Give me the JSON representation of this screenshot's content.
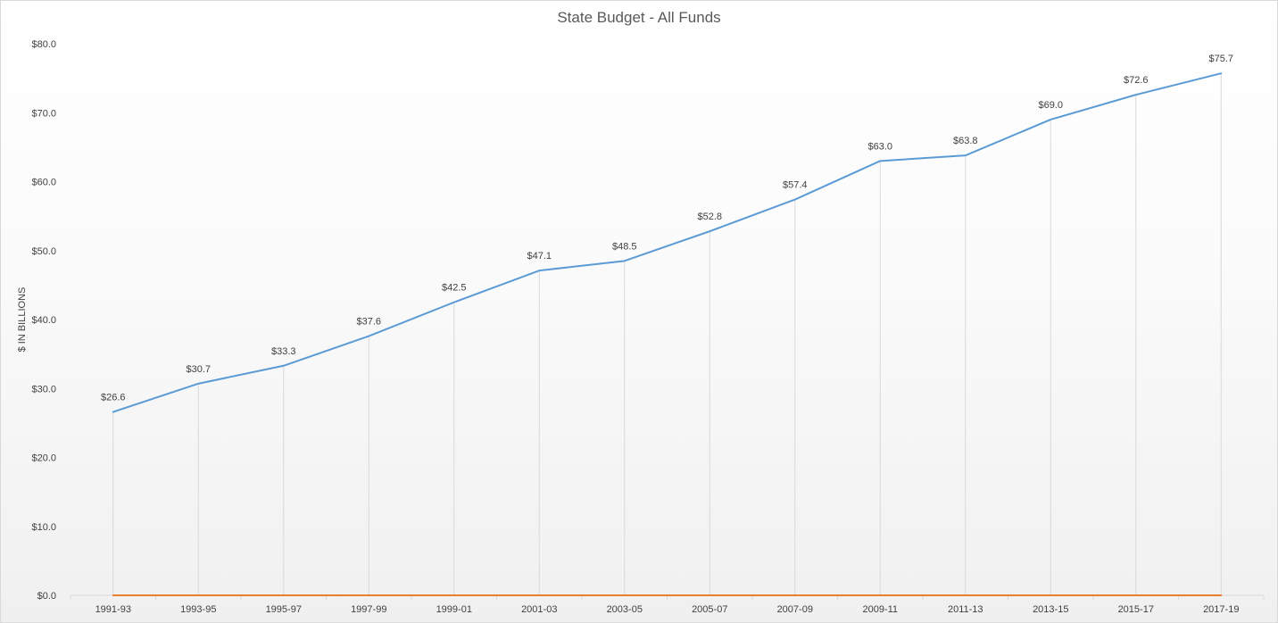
{
  "chart_data": {
    "type": "line",
    "title": "State Budget - All Funds",
    "ylabel": "$ IN BILLIONS",
    "xlabel": "",
    "categories": [
      "1991-93",
      "1993-95",
      "1995-97",
      "1997-99",
      "1999-01",
      "2001-03",
      "2003-05",
      "2005-07",
      "2007-09",
      "2009-11",
      "2011-13",
      "2013-15",
      "2015-17",
      "2017-19"
    ],
    "series": [
      {
        "values": [
          26.6,
          30.7,
          33.3,
          37.6,
          42.5,
          47.1,
          48.5,
          52.8,
          57.4,
          63.0,
          63.8,
          69.0,
          72.6,
          75.7
        ],
        "data_labels": [
          "$26.6",
          "$30.7",
          "$33.3",
          "$37.6",
          "$42.5",
          "$47.1",
          "$48.5",
          "$52.8",
          "$57.4",
          "$63.0",
          "$63.8",
          "$69.0",
          "$72.6",
          "$75.7"
        ],
        "color": "#5b9bd5"
      },
      {
        "values": [
          0,
          0,
          0,
          0,
          0,
          0,
          0,
          0,
          0,
          0,
          0,
          0,
          0,
          0
        ],
        "color": "#ed7d31"
      }
    ],
    "ylim": [
      0,
      80
    ],
    "yticks": [
      "$0.0",
      "$10.0",
      "$20.0",
      "$30.0",
      "$40.0",
      "$50.0",
      "$60.0",
      "$70.0",
      "$80.0"
    ],
    "drop_lines": true,
    "grid": false,
    "legend": "none"
  }
}
